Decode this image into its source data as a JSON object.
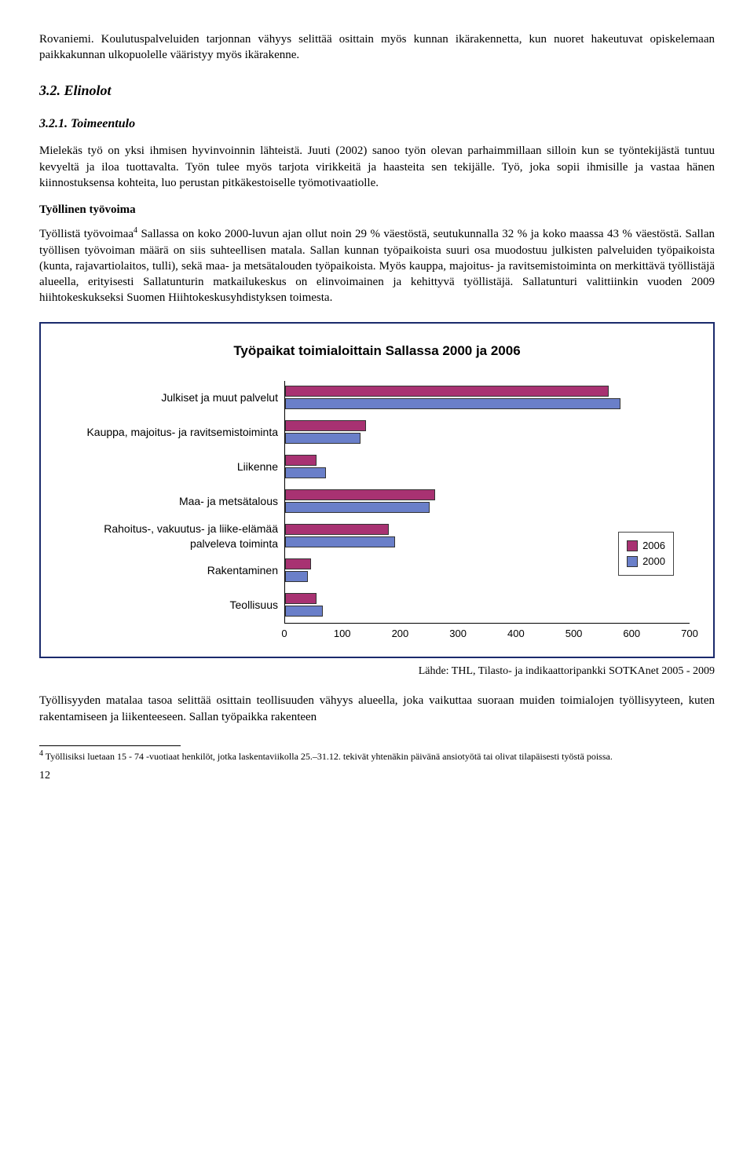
{
  "para_intro": "Rovaniemi. Koulutuspalveluiden tarjonnan vähyys selittää osittain myös kunnan ikärakennetta, kun nuoret hakeutuvat opiskelemaan paikkakunnan ulkopuolelle vääristyy myös ikärakenne.",
  "heading_32": "3.2. Elinolot",
  "heading_321": "3.2.1. Toimeentulo",
  "para_toimeentulo": "Mielekäs työ on yksi ihmisen hyvinvoinnin lähteistä. Juuti (2002) sanoo työn olevan parhaimmillaan silloin kun se työntekijästä tuntuu kevyeltä ja iloa tuottavalta. Työn tulee myös tarjota virikkeitä ja haasteita sen tekijälle. Työ, joka sopii ihmisille ja vastaa hänen kiinnostuksensa kohteita, luo perustan pitkäkestoiselle työmotivaatiolle.",
  "section_label": "Työllinen työvoima",
  "para_tyovoima1": "Sallassa on koko 2000-luvun ajan ollut noin 29 % väestöstä, seutukunnalla 32 % ja koko maassa 43 % väestöstä. Sallan työllisen työvoiman määrä on siis suhteellisen matala. Sallan kunnan työpaikoista suuri osa muodostuu julkisten palveluiden työpaikoista (kunta, rajavartiolaitos, tulli), sekä maa- ja metsätalouden työpaikoista. Myös kauppa, majoitus- ja ravitsemistoiminta on merkittävä työllistäjä alueella, erityisesti Sallatunturin matkailukeskus on elinvoimainen ja kehittyvä työllistäjä. Sallatunturi valittiinkin vuoden 2009 hiihtokeskukseksi Suomen Hiihtokeskusyhdistyksen toimesta.",
  "para_tyovoima_pre": "Työllistä työvoimaa",
  "chart": {
    "title": "Työpaikat toimialoittain Sallassa 2000 ja 2006",
    "categories": [
      "Julkiset ja muut palvelut",
      "Kauppa, majoitus- ja ravitsemistoiminta",
      "Liikenne",
      "Maa- ja metsätalous",
      "Rahoitus-, vakuutus- ja liike-elämää palveleva toiminta",
      "Rakentaminen",
      "Teollisuus"
    ],
    "series": [
      {
        "label": "2006",
        "color": "#a83272",
        "values": [
          560,
          140,
          55,
          260,
          180,
          45,
          55
        ]
      },
      {
        "label": "2000",
        "color": "#6a7fc9",
        "values": [
          580,
          130,
          70,
          250,
          190,
          40,
          65
        ]
      }
    ],
    "xmax": 700,
    "xticks": [
      0,
      100,
      200,
      300,
      400,
      500,
      600,
      700
    ],
    "border_color": "#1a2a6c",
    "bg": "#ffffff"
  },
  "source": "Lähde: THL, Tilasto- ja indikaattoripankki SOTKAnet 2005 - 2009",
  "para_after": "Työllisyyden matalaa tasoa selittää osittain teollisuuden vähyys alueella, joka vaikuttaa suoraan muiden toimialojen työllisyyteen, kuten rakentamiseen ja liikenteeseen. Sallan työpaikka rakenteen",
  "footnote": "Työllisiksi luetaan 15 - 74 -vuotiaat henkilöt, jotka laskentaviikolla 25.–31.12. tekivät yhtenäkin päivänä ansiotyötä tai olivat tilapäisesti työstä poissa.",
  "footnote_num": "4",
  "pagenum": "12"
}
